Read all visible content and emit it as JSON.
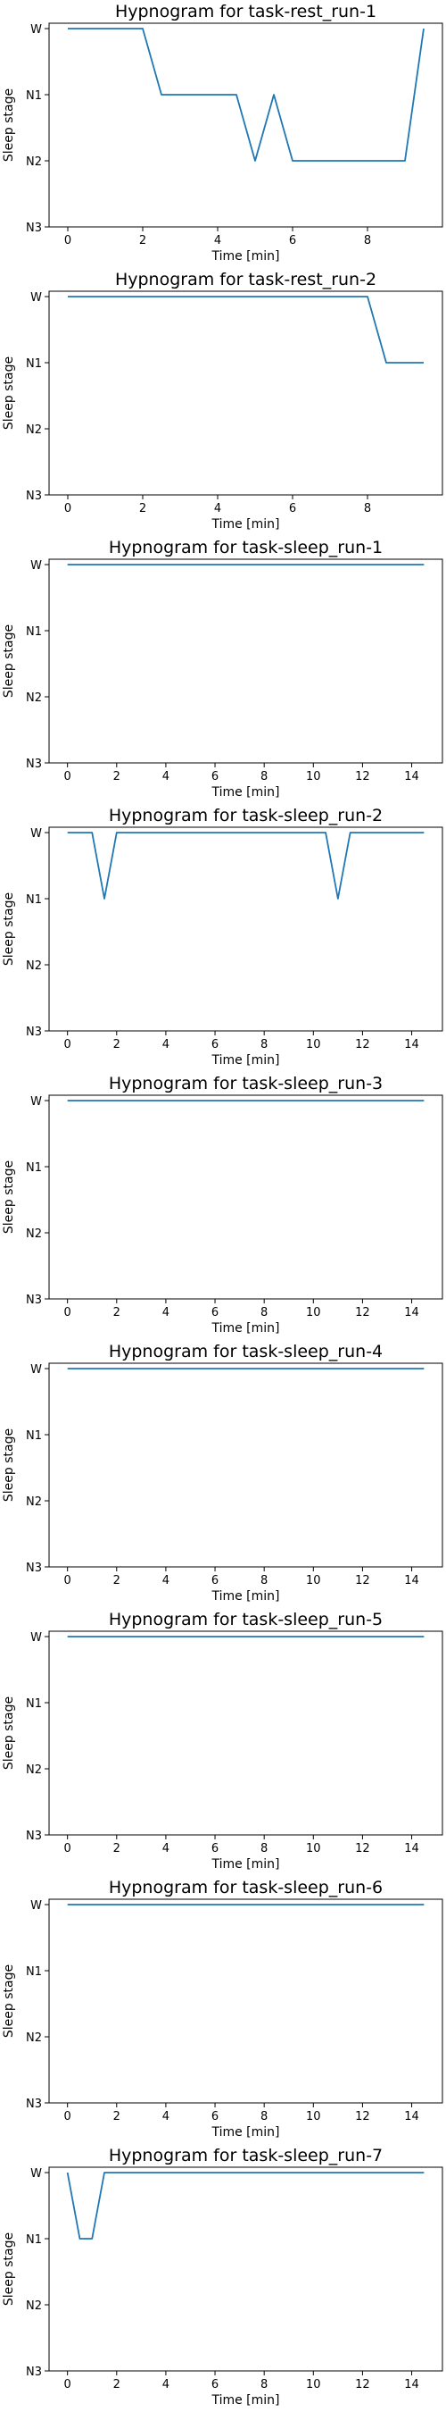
{
  "chart_data": [
    {
      "type": "line",
      "title": "Hypnogram for task-rest_run-1",
      "xlabel": "Time [min]",
      "ylabel": "Sleep stage",
      "xlim": [
        -0.5,
        10
      ],
      "xticks": [
        0,
        2,
        4,
        6,
        8
      ],
      "ycategories": [
        "W",
        "N1",
        "N2",
        "N3"
      ],
      "series": [
        {
          "x": [
            0,
            2,
            2.5,
            4.5,
            5,
            5.5,
            6,
            9,
            9.5
          ],
          "y": [
            "W",
            "W",
            "N1",
            "N1",
            "N2",
            "N1",
            "N2",
            "N2",
            "W"
          ],
          "color": "#1f77b4"
        }
      ]
    },
    {
      "type": "line",
      "title": "Hypnogram for task-rest_run-2",
      "xlabel": "Time [min]",
      "ylabel": "Sleep stage",
      "xlim": [
        -0.5,
        10
      ],
      "xticks": [
        0,
        2,
        4,
        6,
        8
      ],
      "ycategories": [
        "W",
        "N1",
        "N2",
        "N3"
      ],
      "series": [
        {
          "x": [
            0,
            8,
            8.5,
            9.5
          ],
          "y": [
            "W",
            "W",
            "N1",
            "N1"
          ],
          "color": "#1f77b4"
        }
      ]
    },
    {
      "type": "line",
      "title": "Hypnogram for task-sleep_run-1",
      "xlabel": "Time [min]",
      "ylabel": "Sleep stage",
      "xlim": [
        -0.75,
        15.25
      ],
      "xticks": [
        0,
        2,
        4,
        6,
        8,
        10,
        12,
        14
      ],
      "ycategories": [
        "W",
        "N1",
        "N2",
        "N3"
      ],
      "series": [
        {
          "x": [
            0,
            14.5
          ],
          "y": [
            "W",
            "W"
          ],
          "color": "#1f77b4"
        }
      ]
    },
    {
      "type": "line",
      "title": "Hypnogram for task-sleep_run-2",
      "xlabel": "Time [min]",
      "ylabel": "Sleep stage",
      "xlim": [
        -0.75,
        15.25
      ],
      "xticks": [
        0,
        2,
        4,
        6,
        8,
        10,
        12,
        14
      ],
      "ycategories": [
        "W",
        "N1",
        "N2",
        "N3"
      ],
      "series": [
        {
          "x": [
            0,
            1,
            1.5,
            2,
            10.5,
            11,
            11.5,
            14.5
          ],
          "y": [
            "W",
            "W",
            "N1",
            "W",
            "W",
            "N1",
            "W",
            "W"
          ],
          "color": "#1f77b4"
        }
      ]
    },
    {
      "type": "line",
      "title": "Hypnogram for task-sleep_run-3",
      "xlabel": "Time [min]",
      "ylabel": "Sleep stage",
      "xlim": [
        -0.75,
        15.25
      ],
      "xticks": [
        0,
        2,
        4,
        6,
        8,
        10,
        12,
        14
      ],
      "ycategories": [
        "W",
        "N1",
        "N2",
        "N3"
      ],
      "series": [
        {
          "x": [
            0,
            14.5
          ],
          "y": [
            "W",
            "W"
          ],
          "color": "#1f77b4"
        }
      ]
    },
    {
      "type": "line",
      "title": "Hypnogram for task-sleep_run-4",
      "xlabel": "Time [min]",
      "ylabel": "Sleep stage",
      "xlim": [
        -0.75,
        15.25
      ],
      "xticks": [
        0,
        2,
        4,
        6,
        8,
        10,
        12,
        14
      ],
      "ycategories": [
        "W",
        "N1",
        "N2",
        "N3"
      ],
      "series": [
        {
          "x": [
            0,
            14.5
          ],
          "y": [
            "W",
            "W"
          ],
          "color": "#1f77b4"
        }
      ]
    },
    {
      "type": "line",
      "title": "Hypnogram for task-sleep_run-5",
      "xlabel": "Time [min]",
      "ylabel": "Sleep stage",
      "xlim": [
        -0.75,
        15.25
      ],
      "xticks": [
        0,
        2,
        4,
        6,
        8,
        10,
        12,
        14
      ],
      "ycategories": [
        "W",
        "N1",
        "N2",
        "N3"
      ],
      "series": [
        {
          "x": [
            0,
            14.5
          ],
          "y": [
            "W",
            "W"
          ],
          "color": "#1f77b4"
        }
      ]
    },
    {
      "type": "line",
      "title": "Hypnogram for task-sleep_run-6",
      "xlabel": "Time [min]",
      "ylabel": "Sleep stage",
      "xlim": [
        -0.75,
        15.25
      ],
      "xticks": [
        0,
        2,
        4,
        6,
        8,
        10,
        12,
        14
      ],
      "ycategories": [
        "W",
        "N1",
        "N2",
        "N3"
      ],
      "series": [
        {
          "x": [
            0,
            14.5
          ],
          "y": [
            "W",
            "W"
          ],
          "color": "#1f77b4"
        }
      ]
    },
    {
      "type": "line",
      "title": "Hypnogram for task-sleep_run-7",
      "xlabel": "Time [min]",
      "ylabel": "Sleep stage",
      "xlim": [
        -0.75,
        15.25
      ],
      "xticks": [
        0,
        2,
        4,
        6,
        8,
        10,
        12,
        14
      ],
      "ycategories": [
        "W",
        "N1",
        "N2",
        "N3"
      ],
      "series": [
        {
          "x": [
            0,
            0.5,
            1,
            1.5,
            14.5
          ],
          "y": [
            "W",
            "N1",
            "N1",
            "W",
            "W"
          ],
          "color": "#1f77b4"
        }
      ]
    }
  ]
}
